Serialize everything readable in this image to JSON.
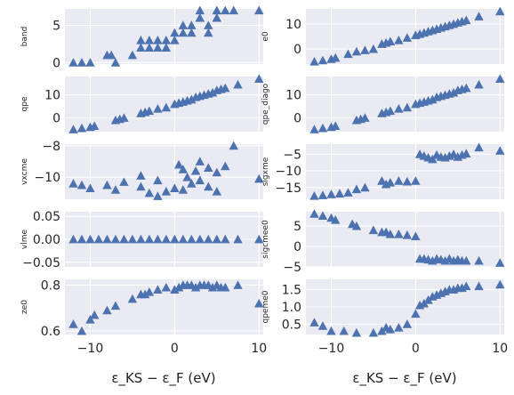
{
  "figure": {
    "xlabel": "ε_KS − ε_F (eV)",
    "xticks": [
      -10,
      0,
      10
    ]
  },
  "chart_data": [
    {
      "type": "scatter",
      "ylabel": "band",
      "xlim": [
        -13,
        10.5
      ],
      "ylim": [
        -0.2,
        7.2
      ],
      "yticks": [
        0,
        5
      ],
      "marker_color": "#4c72b0",
      "x": [
        -12,
        -11,
        -10,
        -8,
        -7.5,
        -7,
        -5,
        -4,
        -4,
        -3,
        -3,
        -2,
        -2,
        -1,
        -1,
        0,
        0,
        1,
        1,
        2,
        2,
        3,
        3,
        3,
        4,
        4,
        5,
        5,
        5,
        6,
        7,
        10
      ],
      "y": [
        0,
        0,
        0,
        1,
        1,
        0,
        1,
        2,
        3,
        2,
        3,
        2,
        3,
        2,
        3,
        4,
        3,
        5,
        4,
        4,
        5,
        6,
        7,
        6,
        4,
        5,
        6,
        7,
        6,
        7,
        7,
        7
      ]
    },
    {
      "type": "scatter",
      "ylabel": "e0",
      "xlim": [
        -13,
        10.5
      ],
      "ylim": [
        -6,
        16
      ],
      "yticks": [
        0,
        10
      ],
      "marker_color": "#4c72b0",
      "x": [
        -12,
        -11,
        -10,
        -9.5,
        -8,
        -7,
        -6,
        -5,
        -4,
        -3.5,
        -3,
        -2,
        -1,
        0,
        0.5,
        1,
        1.5,
        2,
        2.5,
        3,
        3.5,
        4,
        4.5,
        5,
        5.5,
        6,
        7.5,
        10
      ],
      "y": [
        -5,
        -4.5,
        -4,
        -3.5,
        -2,
        -1,
        -0.5,
        0,
        2,
        2.5,
        3,
        3.5,
        4.5,
        5.5,
        6,
        6.5,
        7,
        7.5,
        8,
        8.5,
        9,
        9.5,
        10,
        10.5,
        11,
        11.5,
        13,
        15
      ]
    },
    {
      "type": "scatter",
      "ylabel": "qpe",
      "xlim": [
        -13,
        10.5
      ],
      "ylim": [
        -6,
        18
      ],
      "yticks": [
        0,
        10
      ],
      "marker_color": "#4c72b0",
      "x": [
        -12,
        -11,
        -10,
        -9.5,
        -7,
        -6.5,
        -6,
        -4,
        -3.5,
        -3,
        -2,
        -1,
        0,
        0.5,
        1,
        1.5,
        2,
        2.5,
        3,
        3.5,
        4,
        4.5,
        5,
        5.5,
        6,
        7.5,
        10
      ],
      "y": [
        -5,
        -4.5,
        -4,
        -3.5,
        -1,
        -0.5,
        0,
        2,
        2.5,
        3,
        4,
        4.5,
        6,
        6.5,
        7,
        7.5,
        8,
        9,
        9.5,
        10,
        10.5,
        11,
        12,
        12.5,
        13,
        14.5,
        17
      ]
    },
    {
      "type": "scatter",
      "ylabel": "qpe_diago",
      "xlim": [
        -13,
        10.5
      ],
      "ylim": [
        -6,
        18
      ],
      "yticks": [
        0,
        10
      ],
      "marker_color": "#4c72b0",
      "x": [
        -12,
        -11,
        -10,
        -9.5,
        -7,
        -6.5,
        -6,
        -4,
        -3.5,
        -3,
        -2,
        -1,
        0,
        0.5,
        1,
        1.5,
        2,
        2.5,
        3,
        3.5,
        4,
        4.5,
        5,
        5.5,
        6,
        7.5,
        10
      ],
      "y": [
        -5,
        -4.5,
        -4,
        -3.5,
        -1,
        -0.5,
        0,
        2,
        2.5,
        3,
        4,
        4.5,
        6,
        6.5,
        7,
        7.5,
        8,
        9,
        9.5,
        10,
        10.5,
        11,
        12,
        12.5,
        13,
        14.5,
        17
      ]
    },
    {
      "type": "scatter",
      "ylabel": "vxcme",
      "xlim": [
        -13,
        10.5
      ],
      "ylim": [
        -11.4,
        -7.9
      ],
      "yticks": [
        -10,
        -8
      ],
      "marker_color": "#4c72b0",
      "x": [
        -12,
        -11,
        -10,
        -8,
        -7,
        -6,
        -4,
        -4,
        -3,
        -2,
        -2,
        -1,
        0,
        0.5,
        1,
        1,
        1.5,
        2,
        2.5,
        3,
        3,
        4,
        4,
        5,
        5,
        6,
        7,
        10
      ],
      "y": [
        -10.4,
        -10.5,
        -10.7,
        -10.5,
        -10.8,
        -10.3,
        -9.9,
        -10.6,
        -11,
        -10.2,
        -11.2,
        -10.9,
        -10.7,
        -9.2,
        -9.5,
        -10.8,
        -10,
        -10.4,
        -9.6,
        -9,
        -10.2,
        -9.4,
        -10.6,
        -9.7,
        -10.9,
        -9.3,
        -8,
        -10.1
      ]
    },
    {
      "type": "scatter",
      "ylabel": "sigxme",
      "xlim": [
        -13,
        10.5
      ],
      "ylim": [
        -18.5,
        -2
      ],
      "yticks": [
        -15,
        -10,
        -5
      ],
      "marker_color": "#4c72b0",
      "x": [
        -12,
        -11,
        -10,
        -9,
        -8,
        -7,
        -6,
        -4,
        -3.5,
        -3,
        -2,
        -1,
        0,
        0.5,
        1,
        1.5,
        2,
        2.5,
        3,
        3.5,
        4,
        4.5,
        5,
        5.5,
        6,
        7.5,
        10
      ],
      "y": [
        -17.5,
        -17.3,
        -17,
        -16.8,
        -16.5,
        -15.5,
        -15,
        -13,
        -14,
        -13.5,
        -13,
        -13.2,
        -13,
        -5,
        -5.5,
        -6,
        -6.5,
        -5.2,
        -5.8,
        -6,
        -5.5,
        -5,
        -5.8,
        -5.2,
        -4.8,
        -3,
        -4
      ]
    },
    {
      "type": "scatter",
      "ylabel": "vlme",
      "xlim": [
        -13,
        10.5
      ],
      "ylim": [
        -0.06,
        0.06
      ],
      "yticks": [
        -0.05,
        0.0,
        0.05
      ],
      "ytick_labels": [
        "−0.05",
        "0.00",
        "0.05"
      ],
      "marker_color": "#4c72b0",
      "x": [
        -12,
        -11,
        -10,
        -9,
        -8,
        -7,
        -6,
        -5,
        -4,
        -3,
        -2,
        -1,
        0,
        1,
        2,
        3,
        4,
        5,
        6,
        7.5,
        10
      ],
      "y": [
        0,
        0,
        0,
        0,
        0,
        0,
        0,
        0,
        0,
        0,
        0,
        0,
        0,
        0,
        0,
        0,
        0,
        0,
        0,
        0,
        0
      ]
    },
    {
      "type": "scatter",
      "ylabel": "sigcmee0",
      "xlim": [
        -13,
        10.5
      ],
      "ylim": [
        -5,
        8.5
      ],
      "yticks": [
        -5,
        0,
        5
      ],
      "marker_color": "#4c72b0",
      "x": [
        -12,
        -11,
        -10,
        -9.5,
        -7.5,
        -7,
        -5,
        -4,
        -3.5,
        -3,
        -2,
        -1,
        0,
        0.5,
        1,
        1.5,
        2,
        2.5,
        3,
        3.5,
        4,
        4.5,
        5,
        5.5,
        6,
        7.5,
        10
      ],
      "y": [
        8,
        7.5,
        7,
        6.5,
        5.5,
        5,
        4,
        3.5,
        3.5,
        3,
        3,
        2.8,
        2.5,
        -3,
        -3,
        -3.2,
        -3.5,
        -3,
        -3.2,
        -3.5,
        -3,
        -3.5,
        -3.2,
        -3.5,
        -3.5,
        -3.5,
        -4
      ]
    },
    {
      "type": "scatter",
      "ylabel": "ze0",
      "xlim": [
        -13,
        10.5
      ],
      "ylim": [
        0.585,
        0.825
      ],
      "yticks": [
        0.6,
        0.8
      ],
      "ytick_labels": [
        "0.6",
        "0.8"
      ],
      "marker_color": "#4c72b0",
      "x": [
        -12,
        -11,
        -10,
        -9.5,
        -8,
        -7,
        -5,
        -4,
        -3.5,
        -3,
        -2,
        -1,
        0,
        0.5,
        1,
        1.5,
        2,
        2.5,
        3,
        3.5,
        4,
        4.5,
        5,
        5.5,
        6,
        7.5,
        10
      ],
      "y": [
        0.63,
        0.6,
        0.65,
        0.67,
        0.69,
        0.71,
        0.74,
        0.76,
        0.76,
        0.77,
        0.78,
        0.79,
        0.78,
        0.79,
        0.8,
        0.8,
        0.8,
        0.79,
        0.8,
        0.8,
        0.8,
        0.79,
        0.8,
        0.79,
        0.79,
        0.8,
        0.72
      ]
    },
    {
      "type": "scatter",
      "ylabel": "qpeme0",
      "xlim": [
        -13,
        10.5
      ],
      "ylim": [
        0.2,
        1.8
      ],
      "yticks": [
        0.5,
        1.0,
        1.5
      ],
      "ytick_labels": [
        "0.5",
        "1.0",
        "1.5"
      ],
      "marker_color": "#4c72b0",
      "x": [
        -12,
        -11,
        -10,
        -8.5,
        -7,
        -5,
        -4,
        -3.5,
        -3,
        -2,
        -1,
        0,
        0.5,
        1,
        1.5,
        2,
        2.5,
        3,
        3.5,
        4,
        4.5,
        5,
        5.5,
        6,
        7.5,
        10
      ],
      "y": [
        0.55,
        0.45,
        0.3,
        0.3,
        0.25,
        0.25,
        0.3,
        0.4,
        0.35,
        0.4,
        0.5,
        0.8,
        1.05,
        1.1,
        1.2,
        1.3,
        1.35,
        1.4,
        1.45,
        1.5,
        1.5,
        1.55,
        1.55,
        1.6,
        1.6,
        1.65
      ]
    }
  ]
}
